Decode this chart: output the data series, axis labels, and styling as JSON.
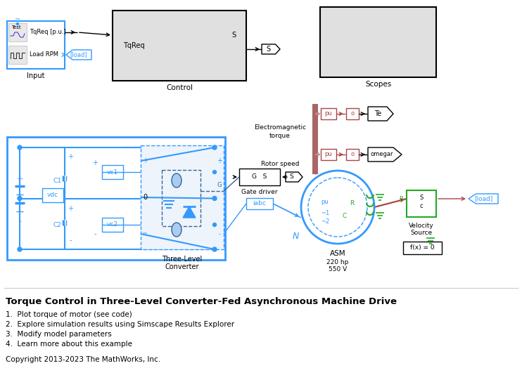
{
  "title": "Torque Control in Three-Level Converter-Fed Asynchronous Machine Drive",
  "bullet_points": [
    "1.  Plot torque of motor (see code)",
    "2.  Explore simulation results using Simscape Results Explorer",
    "3.  Modify model parameters",
    "4.  Learn more about this example"
  ],
  "copyright": "Copyright 2013-2023 The MathWorks, Inc.",
  "bg_color": "#ffffff",
  "blue": "#3399ff",
  "dark_blue": "#336699",
  "blue_med": "#4488cc",
  "green": "#22aa22",
  "dark_red": "#aa4444",
  "pink_red": "#cc8888",
  "black": "#000000",
  "gray": "#aaaaaa",
  "light_gray": "#cccccc",
  "block_gray": "#e8e8e8",
  "scope_gray": "#e0e0e0"
}
